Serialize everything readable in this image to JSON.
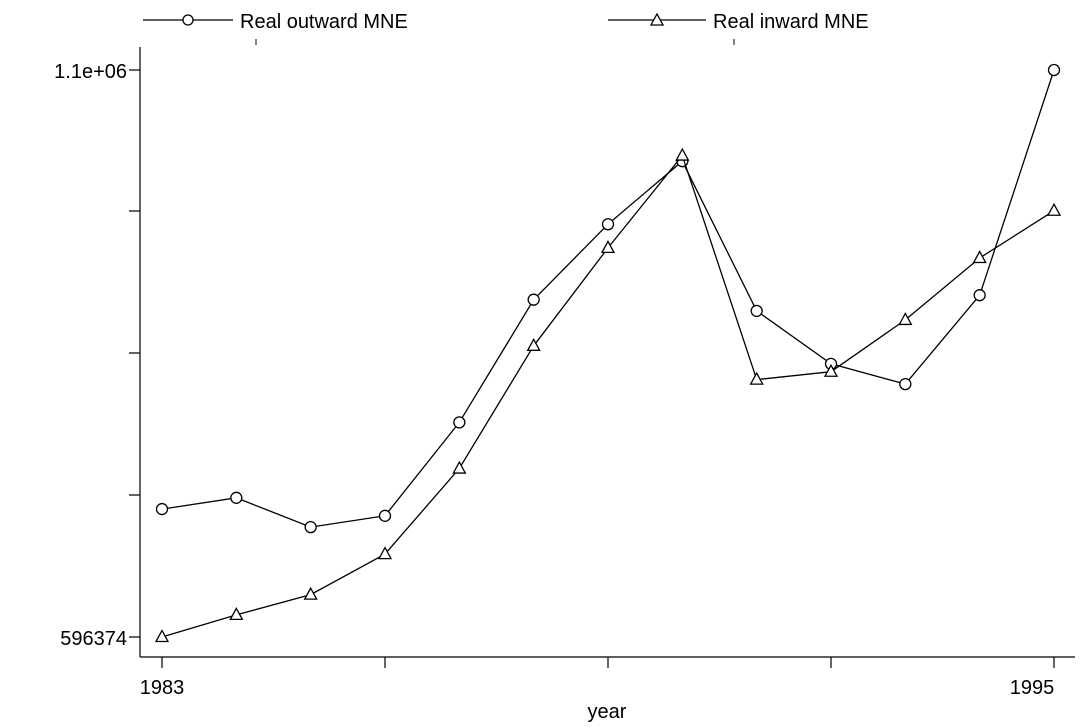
{
  "chart_data": {
    "type": "line",
    "title": "",
    "xlabel": "year",
    "ylabel": "",
    "x": [
      1983,
      1984,
      1985,
      1986,
      1987,
      1988,
      1989,
      1990,
      1991,
      1992,
      1993,
      1994,
      1995
    ],
    "xlim": [
      1983,
      1995
    ],
    "ylim": [
      596374,
      1100000
    ],
    "x_tick_labels": [
      "1983",
      "1995"
    ],
    "y_tick_labels": [
      "596374",
      "1.1e+06"
    ],
    "grid": false,
    "legend_position": "top",
    "series": [
      {
        "name": "Real outward MNE",
        "marker": "circle",
        "values": [
          710000,
          720000,
          694000,
          704000,
          787000,
          896000,
          963000,
          1019000,
          886000,
          839000,
          821000,
          900000,
          1100000
        ]
      },
      {
        "name": "Real inward MNE",
        "marker": "triangle",
        "values": [
          596374,
          616000,
          634000,
          670000,
          746000,
          855000,
          942000,
          1024000,
          825000,
          832000,
          878000,
          933000,
          975000
        ]
      }
    ]
  }
}
